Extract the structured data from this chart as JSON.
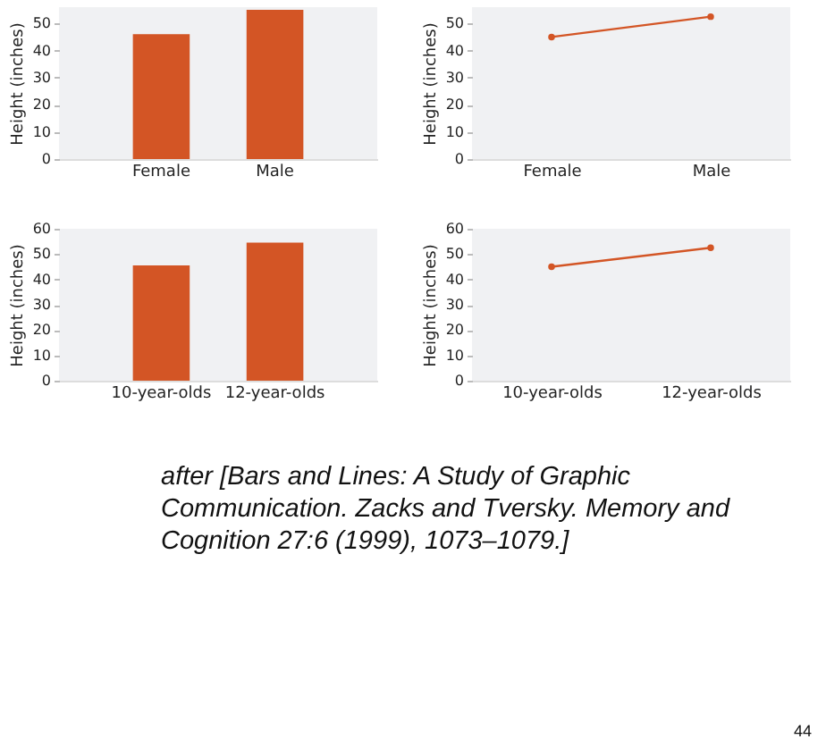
{
  "chart_data": [
    {
      "type": "bar",
      "ylabel": "Height (inches)",
      "categories": [
        "Female",
        "Male"
      ],
      "values": [
        46,
        55
      ],
      "color": "#d35525",
      "ylim": [
        0,
        56
      ],
      "yticks": [
        0,
        10,
        20,
        30,
        40,
        50
      ],
      "grid": false
    },
    {
      "type": "line",
      "ylabel": "Height (inches)",
      "categories": [
        "Female",
        "Male"
      ],
      "values": [
        45,
        52.5
      ],
      "color": "#d35525",
      "marker": "circle",
      "ylim": [
        0,
        56
      ],
      "yticks": [
        0,
        10,
        20,
        30,
        40,
        50
      ],
      "grid": false
    },
    {
      "type": "bar",
      "ylabel": "Height (inches)",
      "categories": [
        "10-year-olds",
        "12-year-olds"
      ],
      "values": [
        45.5,
        54.5
      ],
      "color": "#d35525",
      "ylim": [
        0,
        60
      ],
      "yticks": [
        0,
        10,
        20,
        30,
        40,
        50,
        60
      ],
      "grid": false
    },
    {
      "type": "line",
      "ylabel": "Height (inches)",
      "categories": [
        "10-year-olds",
        "12-year-olds"
      ],
      "values": [
        45,
        52.5
      ],
      "color": "#d35525",
      "marker": "circle",
      "ylim": [
        0,
        60
      ],
      "yticks": [
        0,
        10,
        20,
        30,
        40,
        50,
        60
      ],
      "grid": false,
      "annotations": [
        "after [Bars and Lines: A Study of Graphic Communication. Zacks and Tversky. Memory and Cognition 27:6 (1999), 1073–1079.]",
        "44"
      ]
    }
  ]
}
